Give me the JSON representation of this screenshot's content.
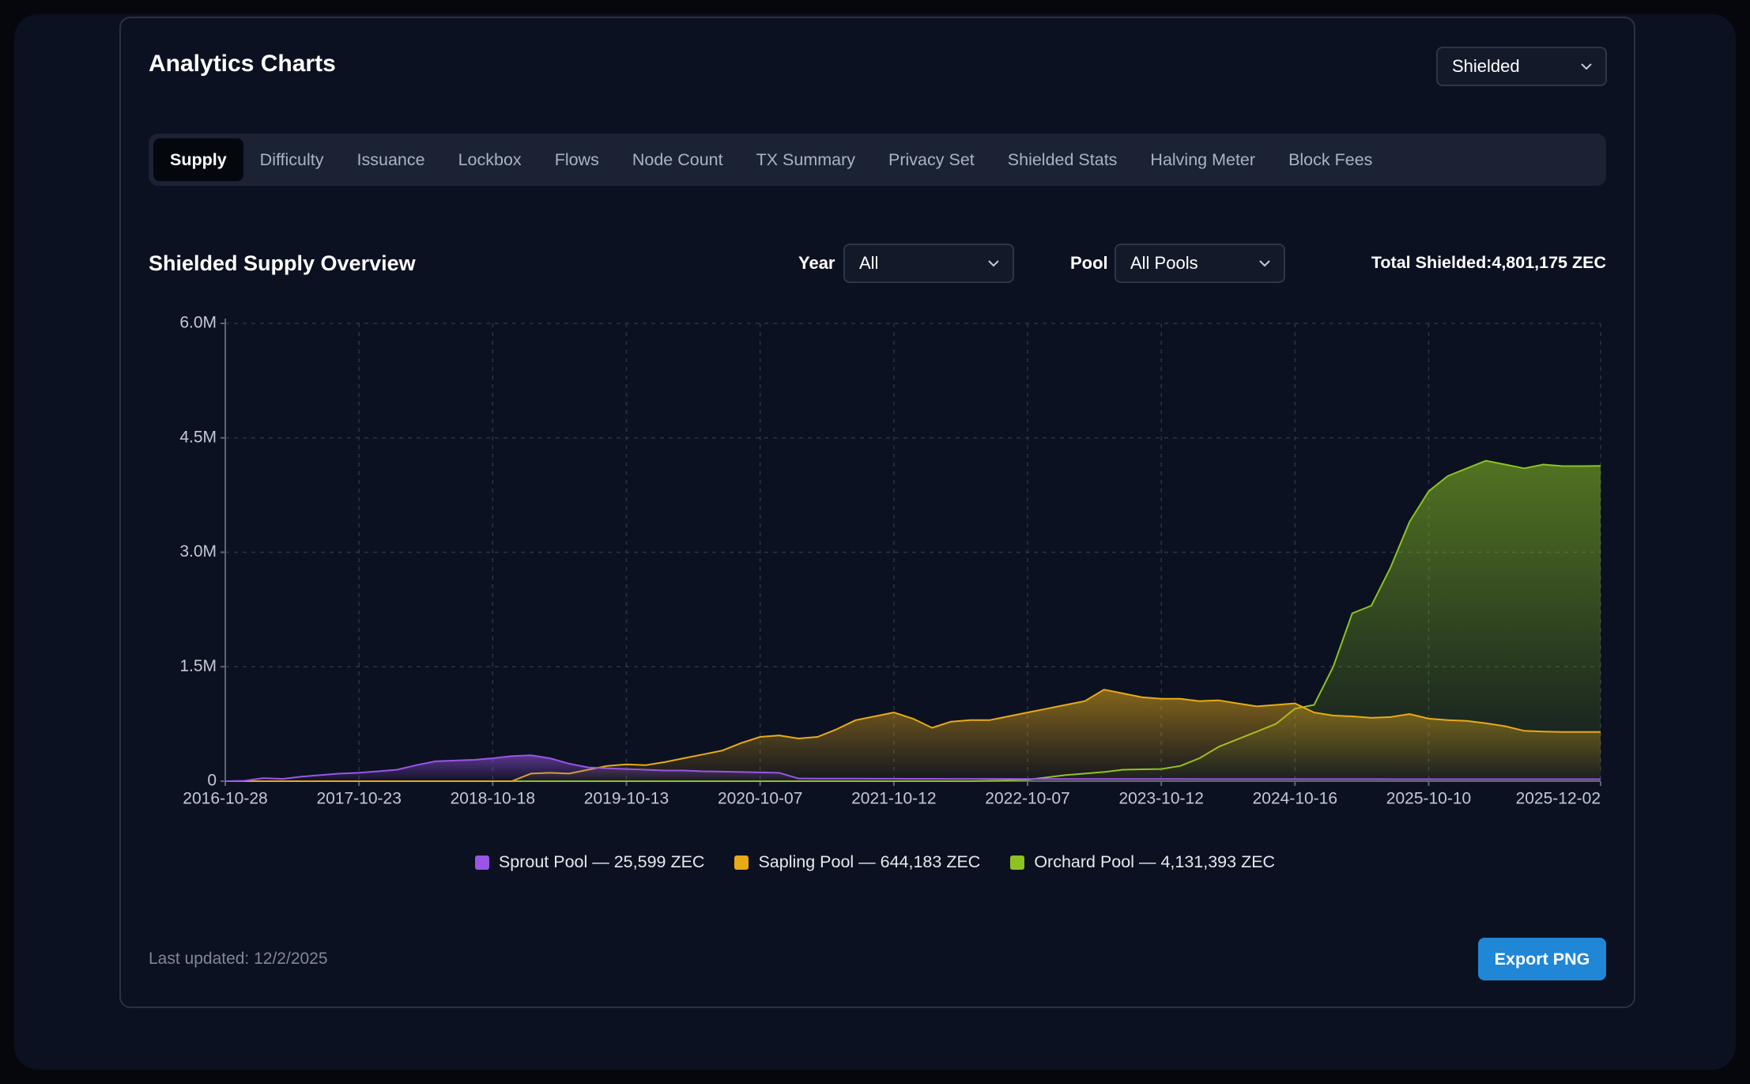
{
  "header": {
    "title": "Analytics Charts",
    "selector": "Shielded"
  },
  "tabs": [
    "Supply",
    "Difficulty",
    "Issuance",
    "Lockbox",
    "Flows",
    "Node Count",
    "TX Summary",
    "Privacy Set",
    "Shielded Stats",
    "Halving Meter",
    "Block Fees"
  ],
  "active_tab": 0,
  "section": {
    "title": "Shielded Supply Overview",
    "year_label": "Year",
    "year_value": "All",
    "pool_label": "Pool",
    "pool_value": "All Pools",
    "total": "Total Shielded:4,801,175 ZEC"
  },
  "chart_data": {
    "type": "area",
    "categories": [
      "2016-10-28",
      null,
      null,
      null,
      null,
      null,
      null,
      "2017-10-23",
      null,
      null,
      null,
      null,
      null,
      null,
      "2018-10-18",
      null,
      null,
      null,
      null,
      null,
      null,
      "2019-10-13",
      null,
      null,
      null,
      null,
      null,
      null,
      "2020-10-07",
      null,
      null,
      null,
      null,
      null,
      null,
      "2021-10-12",
      null,
      null,
      null,
      null,
      null,
      null,
      "2022-10-07",
      null,
      null,
      null,
      null,
      null,
      null,
      "2023-10-12",
      null,
      null,
      null,
      null,
      null,
      null,
      "2024-10-16",
      null,
      null,
      null,
      null,
      null,
      null,
      "2025-10-10",
      null,
      null,
      null,
      null,
      null,
      null,
      null,
      null,
      "2025-12-02"
    ],
    "series": [
      {
        "name": "Sprout Pool — 25,599 ZEC",
        "color": "#9b55e6",
        "values": [
          0,
          5000,
          40000,
          30000,
          60000,
          80000,
          100000,
          110000,
          130000,
          150000,
          210000,
          260000,
          270000,
          280000,
          300000,
          330000,
          340000,
          300000,
          230000,
          180000,
          170000,
          160000,
          150000,
          140000,
          140000,
          130000,
          125000,
          120000,
          115000,
          110000,
          35000,
          34000,
          33000,
          33000,
          32000,
          32000,
          31000,
          31000,
          30000,
          30000,
          30000,
          30000,
          29000,
          29000,
          29000,
          29000,
          28000,
          28000,
          28000,
          28000,
          28000,
          27000,
          27000,
          27000,
          27000,
          27000,
          27000,
          26500,
          26500,
          26500,
          26500,
          26000,
          26000,
          26000,
          26000,
          26000,
          26000,
          25800,
          25800,
          25700,
          25700,
          25600,
          25599
        ]
      },
      {
        "name": "Sapling Pool — 644,183 ZEC",
        "color": "#e8aa16",
        "values": [
          0,
          0,
          0,
          0,
          0,
          0,
          0,
          0,
          0,
          0,
          0,
          0,
          0,
          0,
          0,
          0,
          100000,
          110000,
          100000,
          150000,
          200000,
          220000,
          210000,
          250000,
          300000,
          350000,
          400000,
          500000,
          580000,
          600000,
          560000,
          580000,
          680000,
          800000,
          850000,
          900000,
          820000,
          700000,
          780000,
          800000,
          800000,
          850000,
          900000,
          950000,
          1000000,
          1050000,
          1200000,
          1150000,
          1100000,
          1080000,
          1080000,
          1050000,
          1060000,
          1020000,
          980000,
          1000000,
          1020000,
          900000,
          860000,
          850000,
          830000,
          840000,
          880000,
          820000,
          800000,
          790000,
          760000,
          720000,
          660000,
          650000,
          645000,
          645000,
          644183
        ]
      },
      {
        "name": "Orchard Pool — 4,131,393 ZEC",
        "color": "#8cc322",
        "values": [
          0,
          0,
          0,
          0,
          0,
          0,
          0,
          0,
          0,
          0,
          0,
          0,
          0,
          0,
          0,
          0,
          0,
          0,
          0,
          0,
          0,
          0,
          0,
          0,
          0,
          0,
          0,
          0,
          0,
          0,
          0,
          0,
          0,
          0,
          0,
          0,
          0,
          0,
          0,
          0,
          5000,
          10000,
          20000,
          50000,
          80000,
          100000,
          120000,
          150000,
          155000,
          160000,
          200000,
          300000,
          450000,
          550000,
          650000,
          750000,
          950000,
          1000000,
          1500000,
          2200000,
          2300000,
          2800000,
          3400000,
          3800000,
          4000000,
          4100000,
          4200000,
          4150000,
          4100000,
          4150000,
          4130000,
          4130000,
          4131393
        ]
      }
    ],
    "ylim": [
      0,
      6000000
    ],
    "yticks": [
      0,
      {
        "value": 1500000,
        "label": "1.5M"
      },
      {
        "value": 3000000,
        "label": "3.0M"
      },
      {
        "value": 4500000,
        "label": "4.5M"
      },
      {
        "value": 6000000,
        "label": "6.0M"
      }
    ],
    "grid": true
  },
  "footer": {
    "last_updated": "Last updated: 12/2/2025",
    "export": "Export PNG"
  }
}
